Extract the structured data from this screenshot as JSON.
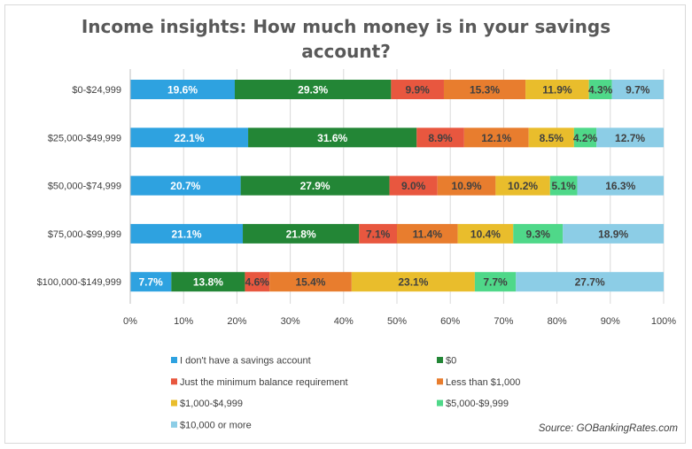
{
  "chart_data": {
    "type": "bar",
    "orientation": "horizontal",
    "stacked": "percent",
    "title_lines": [
      "Income insights: How much money is in your savings",
      "account?"
    ],
    "categories": [
      "$0-$24,999",
      "$25,000-$49,999",
      "$50,000-$74,999",
      "$75,000-$99,999",
      "$100,000-$149,999"
    ],
    "series": [
      {
        "name": "I don't have a savings account",
        "color": "#2ea2e0",
        "labelColor": "#ffffff",
        "values": [
          19.6,
          22.1,
          20.7,
          21.1,
          7.7
        ],
        "labels": [
          "19.6%",
          "22.1%",
          "20.7%",
          "21.1%",
          "7.7%"
        ]
      },
      {
        "name": "$0",
        "color": "#238636",
        "labelColor": "#ffffff",
        "values": [
          29.3,
          31.6,
          27.9,
          21.8,
          13.8
        ],
        "labels": [
          "29.3%",
          "31.6%",
          "27.9%",
          "21.8%",
          "13.8%"
        ]
      },
      {
        "name": "Just the minimum balance requirement",
        "color": "#e8573f",
        "labelColor": "#404040",
        "values": [
          9.9,
          8.9,
          9.0,
          7.1,
          4.6
        ],
        "labels": [
          "9.9%",
          "8.9%",
          "9.0%",
          "7.1%",
          "4.6%"
        ]
      },
      {
        "name": "Less than $1,000",
        "color": "#e87d2e",
        "labelColor": "#404040",
        "values": [
          15.3,
          12.1,
          10.9,
          11.4,
          15.4
        ],
        "labels": [
          "15.3%",
          "12.1%",
          "10.9%",
          "11.4%",
          "15.4%"
        ]
      },
      {
        "name": "$1,000-$4,999",
        "color": "#e9bd2c",
        "labelColor": "#404040",
        "values": [
          11.9,
          8.5,
          10.2,
          10.4,
          23.1
        ],
        "labels": [
          "11.9%",
          "8.5%",
          "10.2%",
          "10.4%",
          "23.1%"
        ]
      },
      {
        "name": "$5,000-$9,999",
        "color": "#4fd889",
        "labelColor": "#404040",
        "values": [
          4.3,
          4.2,
          5.1,
          9.3,
          7.7
        ],
        "labels": [
          "4.3%",
          "4.2%",
          "5.1%",
          "9.3%",
          "7.7%"
        ]
      },
      {
        "name": "$10,000 or more",
        "color": "#8ccde6",
        "labelColor": "#404040",
        "values": [
          9.7,
          12.7,
          16.3,
          18.9,
          27.7
        ],
        "labels": [
          "9.7%",
          "12.7%",
          "16.3%",
          "18.9%",
          "27.7%"
        ]
      }
    ],
    "xlim": [
      0,
      100
    ],
    "x_ticks": [
      0,
      10,
      20,
      30,
      40,
      50,
      60,
      70,
      80,
      90,
      100
    ],
    "x_tick_labels": [
      "0%",
      "10%",
      "20%",
      "30%",
      "40%",
      "50%",
      "60%",
      "70%",
      "80%",
      "90%",
      "100%"
    ],
    "grid": true,
    "legend_position": "bottom",
    "source": "Source: GOBankingRates.com"
  }
}
